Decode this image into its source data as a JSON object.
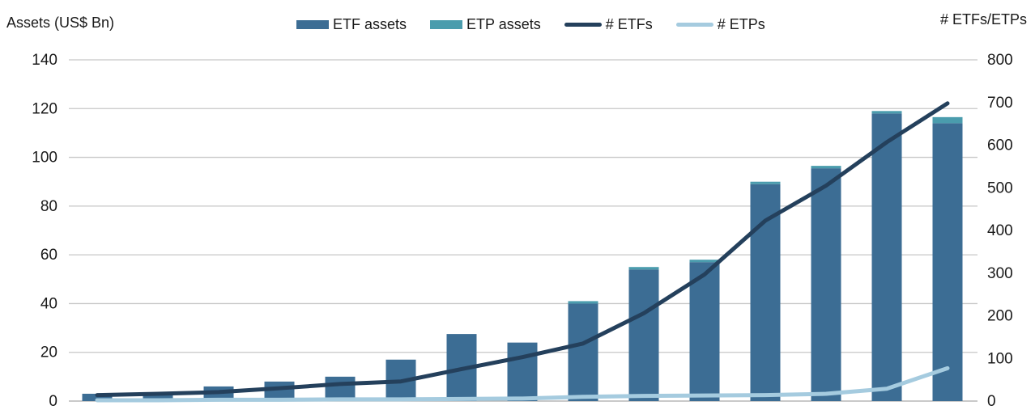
{
  "header": {
    "left_axis_title": "Assets (US$ Bn)",
    "right_axis_title": "# ETFs/ETPs"
  },
  "legend": [
    {
      "label": "ETF assets",
      "swatch": "bar",
      "color": "#3c6d94"
    },
    {
      "label": "ETP assets",
      "swatch": "bar",
      "color": "#4a9cad"
    },
    {
      "label": "# ETFs",
      "swatch": "line",
      "color": "#24405c"
    },
    {
      "label": "# ETPs",
      "swatch": "line",
      "color": "#a5cbdf"
    }
  ],
  "chart_data": {
    "type": "combo-stacked-bar-and-line",
    "num_periods": 15,
    "x_axis_labels_shown": false,
    "categories": [
      "",
      "",
      "",
      "",
      "",
      "",
      "",
      "",
      "",
      "",
      "",
      "",
      "",
      "",
      ""
    ],
    "left_axis": {
      "title": "Assets (US$ Bn)",
      "min": 0,
      "max": 140,
      "step": 20,
      "tick_labels": [
        "140",
        "120",
        "100",
        "80",
        "60",
        "40",
        "20",
        "0"
      ]
    },
    "right_axis": {
      "title": "# ETFs/ETPs",
      "min": 0,
      "max": 800,
      "step": 100,
      "tick_labels": [
        "800",
        "700",
        "600",
        "500",
        "400",
        "300",
        "200",
        "100",
        "0"
      ]
    },
    "series": [
      {
        "name": "ETF assets",
        "type": "bar",
        "stack": "assets",
        "axis": "left",
        "color": "#3c6d94",
        "values": [
          3,
          3.5,
          6,
          8,
          10,
          17,
          27.5,
          24,
          40,
          54,
          57,
          89,
          95.5,
          118,
          114
        ]
      },
      {
        "name": "ETP assets",
        "type": "bar",
        "stack": "assets",
        "axis": "left",
        "color": "#4a9cad",
        "values": [
          0,
          0,
          0,
          0,
          0,
          0,
          0,
          0,
          1,
          1,
          1,
          1,
          1,
          1,
          2.5
        ]
      },
      {
        "name": "# ETFs",
        "type": "line",
        "axis": "right",
        "color": "#24405c",
        "values": [
          14,
          17,
          21,
          30,
          40,
          46,
          75,
          103,
          135,
          206,
          297,
          423,
          505,
          607,
          698
        ]
      },
      {
        "name": "# ETPs",
        "type": "line",
        "axis": "right",
        "color": "#a5cbdf",
        "values": [
          2,
          2,
          3,
          3,
          4,
          4,
          5,
          6,
          10,
          12,
          13,
          14,
          17,
          29,
          77
        ]
      }
    ],
    "grid": "horizontal",
    "legend_position": "top",
    "colors": {
      "gridline": "#c7c7c7",
      "baseline": "#a9a9a9",
      "text": "#1a1a1a"
    }
  }
}
